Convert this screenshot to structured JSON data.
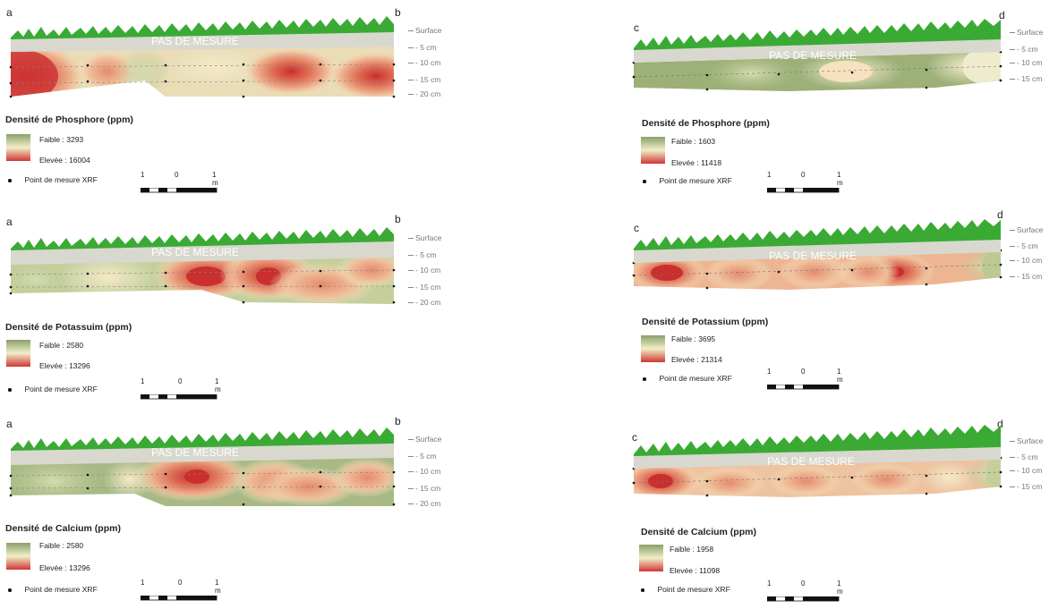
{
  "band_label": "PAS DE MESURE",
  "depth_labels": {
    "surface": "Surface",
    "d5": "- 5 cm",
    "d10": "- 10 cm",
    "d15": "- 15 cm",
    "d20": "- 20 cm"
  },
  "legend_common": {
    "xrf_label": "Point de mesure XRF",
    "scale": {
      "left": "1",
      "mid": "0",
      "right": "1 m"
    }
  },
  "colors": {
    "low": "#8aa06a",
    "mid": "#f1efc8",
    "high": "#cf3636",
    "band": "#d8d8cf",
    "grass": "#3aaa35"
  },
  "panels": [
    {
      "id": "phos-ab",
      "start": "a",
      "end": "b",
      "title": "Densité de Phosphore (ppm)",
      "low_label": "Faible : 3293",
      "high_label": "Elevée : 16004"
    },
    {
      "id": "phos-cd",
      "start": "c",
      "end": "d",
      "title": "Densité de Phosphore (ppm)",
      "low_label": "Faible : 1603",
      "high_label": "Elevée : 11418"
    },
    {
      "id": "pot-ab",
      "start": "a",
      "end": "b",
      "title": "Densité de Potassuim (ppm)",
      "low_label": "Faible : 2580",
      "high_label": "Elevée : 13296"
    },
    {
      "id": "pot-cd",
      "start": "c",
      "end": "d",
      "title": "Densité de Potassium (ppm)",
      "low_label": "Faible : 3695",
      "high_label": "Elevée : 21314"
    },
    {
      "id": "cal-ab",
      "start": "a",
      "end": "b",
      "title": "Densité de Calcium (ppm)",
      "low_label": "Faible : 2580",
      "high_label": "Elevée : 13296"
    },
    {
      "id": "cal-cd",
      "start": "c",
      "end": "d",
      "title": "Densité de Calcium (ppm)",
      "low_label": "Faible : 1958",
      "high_label": "Elevée : 11098"
    }
  ]
}
